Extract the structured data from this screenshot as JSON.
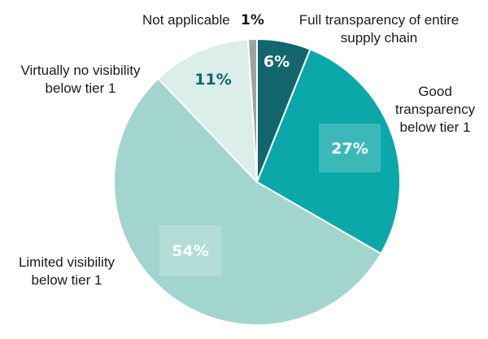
{
  "chart_data": {
    "type": "pie",
    "slices": [
      {
        "label": "Full transparency of entire supply chain",
        "value": 6,
        "value_label": "6%",
        "color": "#13666e"
      },
      {
        "label": "Good transparency below tier 1",
        "value": 27,
        "value_label": "27%",
        "color": "#0aa8a8"
      },
      {
        "label": "Limited visibility below tier 1",
        "value": 54,
        "value_label": "54%",
        "color": "#a3d5cf"
      },
      {
        "label": "Virtually no visibility below tier 1",
        "value": 11,
        "value_label": "11%",
        "color": "#dbeee9"
      },
      {
        "label": "Not applicable",
        "value": 1,
        "value_label": "1%",
        "color": "#9da3a3"
      }
    ]
  }
}
